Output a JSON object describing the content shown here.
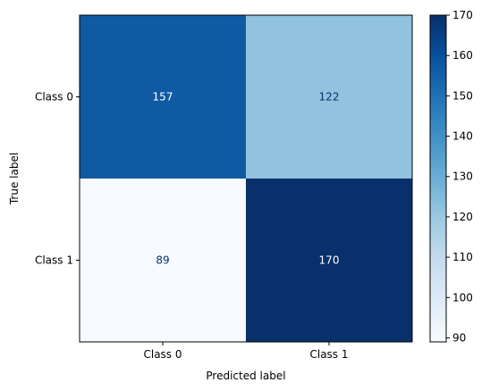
{
  "chart_data": {
    "type": "heatmap",
    "title": "",
    "xlabel": "Predicted label",
    "ylabel": "True label",
    "x_categories": [
      "Class 0",
      "Class 1"
    ],
    "y_categories": [
      "Class 0",
      "Class 1"
    ],
    "values": [
      [
        157,
        122
      ],
      [
        89,
        170
      ]
    ],
    "colormap": "Blues",
    "colorbar": {
      "min": 89,
      "max": 170,
      "ticks": [
        90,
        100,
        110,
        120,
        130,
        140,
        150,
        160,
        170
      ]
    },
    "grid": false,
    "legend": "colorbar-right"
  }
}
